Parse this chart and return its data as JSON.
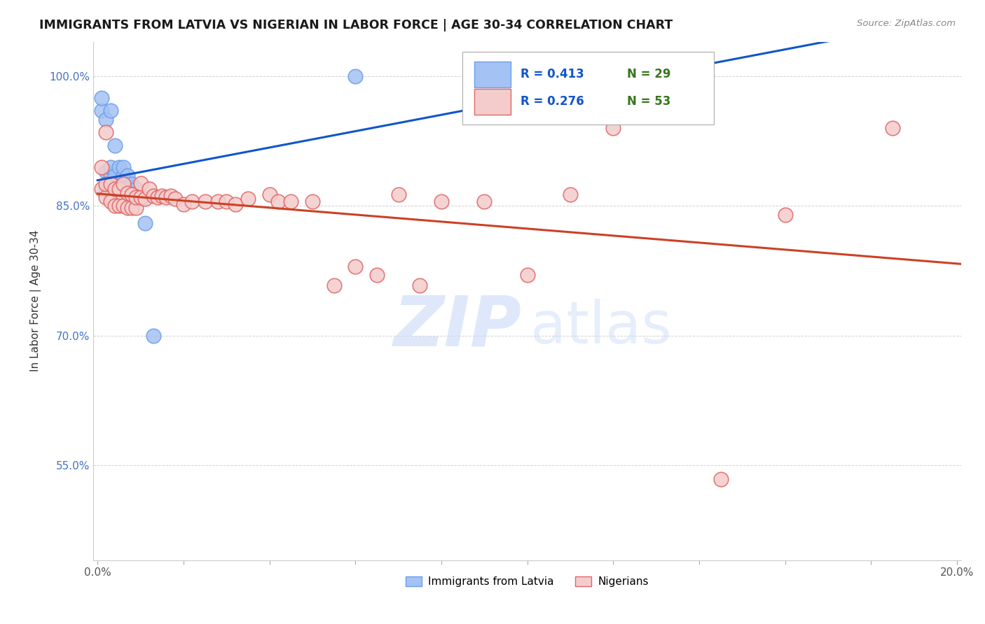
{
  "title": "IMMIGRANTS FROM LATVIA VS NIGERIAN IN LABOR FORCE | AGE 30-34 CORRELATION CHART",
  "source": "Source: ZipAtlas.com",
  "ylabel": "In Labor Force | Age 30-34",
  "xlim": [
    -0.001,
    0.201
  ],
  "ylim": [
    0.44,
    1.04
  ],
  "xticks": [
    0.0,
    0.02,
    0.04,
    0.06,
    0.08,
    0.1,
    0.12,
    0.14,
    0.16,
    0.18,
    0.2
  ],
  "yticks": [
    0.55,
    0.7,
    0.85,
    1.0
  ],
  "yticklabels": [
    "55.0%",
    "70.0%",
    "85.0%",
    "100.0%"
  ],
  "ytick_color": "#4472c4",
  "blue_color": "#a4c2f4",
  "pink_color": "#f4cccc",
  "blue_edge_color": "#6d9eeb",
  "pink_edge_color": "#e06666",
  "blue_line_color": "#1155cc",
  "pink_line_color": "#cc4125",
  "watermark_zip": "ZIP",
  "watermark_atlas": "atlas",
  "latvia_x": [
    0.001,
    0.001,
    0.002,
    0.002,
    0.002,
    0.003,
    0.003,
    0.003,
    0.003,
    0.004,
    0.004,
    0.004,
    0.005,
    0.005,
    0.005,
    0.006,
    0.006,
    0.006,
    0.007,
    0.007,
    0.007,
    0.008,
    0.008,
    0.009,
    0.009,
    0.01,
    0.011,
    0.013,
    0.06
  ],
  "latvia_y": [
    0.96,
    0.975,
    0.87,
    0.89,
    0.95,
    0.875,
    0.885,
    0.895,
    0.96,
    0.87,
    0.885,
    0.92,
    0.87,
    0.875,
    0.895,
    0.875,
    0.885,
    0.895,
    0.865,
    0.875,
    0.885,
    0.865,
    0.875,
    0.86,
    0.87,
    0.858,
    0.83,
    0.7,
    1.0
  ],
  "nigeria_x": [
    0.001,
    0.001,
    0.002,
    0.002,
    0.002,
    0.003,
    0.003,
    0.004,
    0.004,
    0.005,
    0.005,
    0.006,
    0.006,
    0.007,
    0.007,
    0.008,
    0.008,
    0.009,
    0.009,
    0.01,
    0.01,
    0.011,
    0.012,
    0.013,
    0.014,
    0.015,
    0.016,
    0.017,
    0.018,
    0.02,
    0.022,
    0.025,
    0.028,
    0.03,
    0.032,
    0.035,
    0.04,
    0.042,
    0.045,
    0.05,
    0.055,
    0.06,
    0.065,
    0.07,
    0.075,
    0.08,
    0.09,
    0.1,
    0.11,
    0.12,
    0.145,
    0.16,
    0.185
  ],
  "nigeria_y": [
    0.87,
    0.895,
    0.86,
    0.875,
    0.935,
    0.855,
    0.875,
    0.85,
    0.87,
    0.85,
    0.87,
    0.85,
    0.875,
    0.848,
    0.865,
    0.848,
    0.863,
    0.848,
    0.86,
    0.86,
    0.876,
    0.858,
    0.87,
    0.862,
    0.86,
    0.862,
    0.86,
    0.862,
    0.858,
    0.852,
    0.855,
    0.855,
    0.855,
    0.855,
    0.852,
    0.858,
    0.863,
    0.855,
    0.855,
    0.855,
    0.758,
    0.78,
    0.77,
    0.863,
    0.758,
    0.855,
    0.855,
    0.77,
    0.863,
    0.94,
    0.534,
    0.84,
    0.94
  ]
}
